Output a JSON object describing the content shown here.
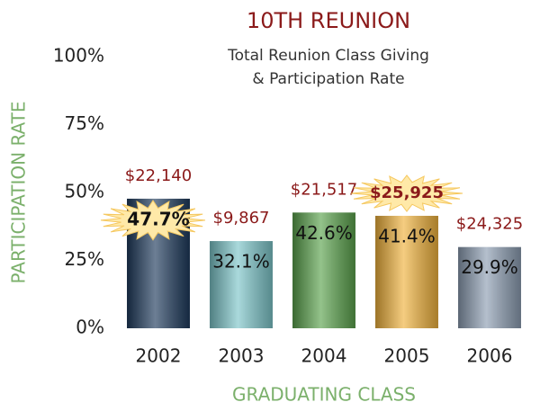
{
  "chart_data": {
    "type": "bar",
    "title": "10TH REUNION",
    "subtitle": [
      "Total Reunion Class Giving",
      "& Participation Rate"
    ],
    "x_label": "GRADUATING CLASS",
    "y_label": "PARTICIPATION RATE",
    "categories": [
      "2002",
      "2003",
      "2004",
      "2005",
      "2006"
    ],
    "values": [
      47.7,
      32.1,
      42.6,
      41.4,
      29.9
    ],
    "value_labels": [
      "47.7%",
      "32.1%",
      "42.6%",
      "41.4%",
      "29.9%"
    ],
    "annotations": [
      "$22,140",
      "$9,867",
      "$21,517",
      "$25,925",
      "$24,325"
    ],
    "colors": [
      "#1e3a5c",
      "#7cc5c9",
      "#5aa24c",
      "#f0b23c",
      "#8c9db2"
    ],
    "highlighted_value_labels": [
      0
    ],
    "highlighted_annotations": [
      3
    ],
    "ylim": [
      0,
      100
    ],
    "yticks": [
      {
        "value": 0,
        "label": "0%"
      },
      {
        "value": 25,
        "label": "25%"
      },
      {
        "value": 50,
        "label": "50%"
      },
      {
        "value": 75,
        "label": "75%"
      },
      {
        "value": 100,
        "label": "100%"
      }
    ]
  }
}
